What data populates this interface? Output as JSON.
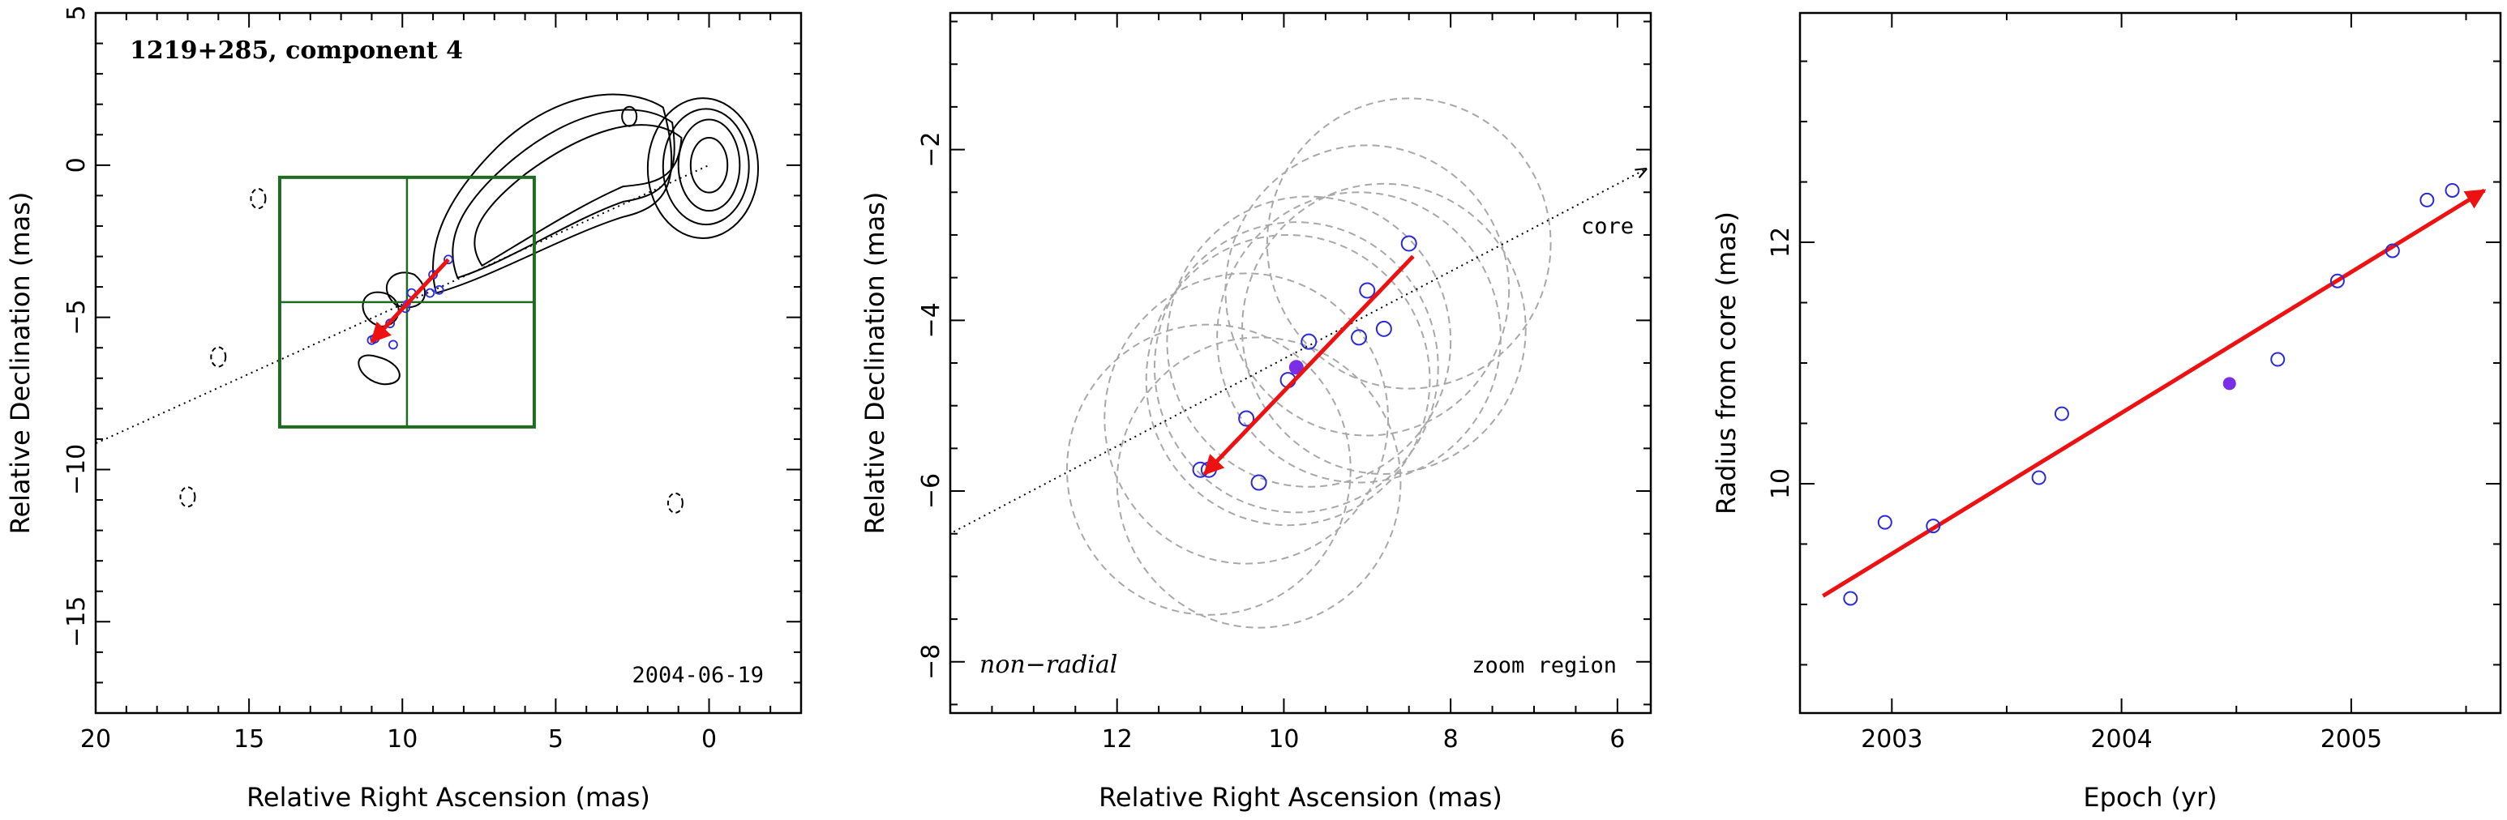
{
  "chart_data": [
    {
      "type": "contour",
      "title": "1219+285, component 4",
      "date_label": "2004-06-19",
      "xlabel": "Relative Right Ascension (mas)",
      "ylabel": "Relative Declination (mas)",
      "xlim": [
        20,
        -3
      ],
      "ylim": [
        -18,
        5
      ],
      "xticks": [
        20,
        15,
        10,
        5,
        0
      ],
      "yticks": [
        5,
        0,
        -5,
        -10,
        -15
      ],
      "zoom_box": {
        "ra": [
          14.0,
          5.7
        ],
        "dec": [
          -8.6,
          -0.4
        ],
        "center": [
          9.85,
          -4.5
        ]
      },
      "trajectory_line": {
        "from": [
          21,
          -9.6
        ],
        "to": [
          0,
          0
        ]
      },
      "motion_arrow": {
        "from": [
          8.5,
          -3.1
        ],
        "to": [
          11.0,
          -5.8
        ]
      },
      "component_points": [
        {
          "ra": 8.5,
          "dec": -3.1
        },
        {
          "ra": 8.8,
          "dec": -4.1
        },
        {
          "ra": 9.0,
          "dec": -3.6
        },
        {
          "ra": 9.1,
          "dec": -4.2
        },
        {
          "ra": 9.7,
          "dec": -4.2
        },
        {
          "ra": 9.9,
          "dec": -4.7
        },
        {
          "ra": 10.4,
          "dec": -5.2
        },
        {
          "ra": 10.3,
          "dec": -5.9
        },
        {
          "ra": 10.9,
          "dec": -5.7
        },
        {
          "ra": 11.0,
          "dec": -5.75
        }
      ],
      "highlight_point": {
        "ra": 9.85,
        "dec": -4.55
      }
    },
    {
      "type": "scatter",
      "title": "",
      "xlabel": "Relative Right Ascension (mas)",
      "ylabel": "Relative Declination (mas)",
      "left_note": "non−radial",
      "right_note": "zoom region",
      "core_label": "core",
      "xlim": [
        14,
        5.6
      ],
      "ylim": [
        -8.6,
        -0.4
      ],
      "xticks": [
        12,
        10,
        8,
        6
      ],
      "yticks": [
        -2,
        -4,
        -6,
        -8
      ],
      "trajectory_line": {
        "from": [
          14.2,
          -6.6
        ],
        "to": [
          5.6,
          -2.2
        ]
      },
      "motion_arrow": {
        "from": [
          8.45,
          -3.25
        ],
        "to": [
          10.95,
          -5.8
        ]
      },
      "points": [
        {
          "ra": 8.5,
          "dec": -3.1
        },
        {
          "ra": 9.0,
          "dec": -3.65
        },
        {
          "ra": 8.8,
          "dec": -4.1
        },
        {
          "ra": 9.1,
          "dec": -4.2
        },
        {
          "ra": 9.7,
          "dec": -4.25
        },
        {
          "ra": 9.95,
          "dec": -4.7
        },
        {
          "ra": 10.45,
          "dec": -5.15
        },
        {
          "ra": 10.9,
          "dec": -5.75
        },
        {
          "ra": 11.0,
          "dec": -5.75
        },
        {
          "ra": 10.3,
          "dec": -5.9
        }
      ],
      "highlight_point": {
        "ra": 9.85,
        "dec": -4.55
      },
      "beam_circles": [
        {
          "ra": 8.5,
          "dec": -3.1,
          "r": 1.7
        },
        {
          "ra": 9.0,
          "dec": -3.65,
          "r": 1.7
        },
        {
          "ra": 8.8,
          "dec": -4.1,
          "r": 1.7
        },
        {
          "ra": 9.1,
          "dec": -4.2,
          "r": 1.7
        },
        {
          "ra": 9.7,
          "dec": -4.25,
          "r": 1.7
        },
        {
          "ra": 9.95,
          "dec": -4.7,
          "r": 1.7
        },
        {
          "ra": 10.45,
          "dec": -5.15,
          "r": 1.7
        },
        {
          "ra": 10.9,
          "dec": -5.75,
          "r": 1.7
        },
        {
          "ra": 10.3,
          "dec": -5.9,
          "r": 1.7
        },
        {
          "ra": 9.85,
          "dec": -4.55,
          "r": 1.7
        }
      ]
    },
    {
      "type": "scatter",
      "title": "",
      "xlabel": "Epoch (yr)",
      "ylabel": "Radius from core (mas)",
      "xlim": [
        2002.6,
        2005.65
      ],
      "ylim": [
        8.1,
        13.9
      ],
      "xticks": [
        2003,
        2004,
        2005
      ],
      "yticks": [
        10,
        12
      ],
      "fit_arrow": {
        "from": [
          2002.7,
          9.07
        ],
        "to": [
          2005.58,
          12.43
        ]
      },
      "points": [
        {
          "x": 2002.82,
          "y": 9.05
        },
        {
          "x": 2002.97,
          "y": 9.68
        },
        {
          "x": 2003.18,
          "y": 9.65
        },
        {
          "x": 2003.64,
          "y": 10.05
        },
        {
          "x": 2003.74,
          "y": 10.58
        },
        {
          "x": 2004.68,
          "y": 11.03
        },
        {
          "x": 2004.94,
          "y": 11.68
        },
        {
          "x": 2005.18,
          "y": 11.93
        },
        {
          "x": 2005.33,
          "y": 12.35
        },
        {
          "x": 2005.44,
          "y": 12.43
        }
      ],
      "highlight_point": {
        "x": 2004.47,
        "y": 10.83
      }
    }
  ],
  "colors": {
    "points": "#2b2bd6",
    "highlight": "#7a2ee6",
    "arrow": "#ee1111",
    "box": "#1f6b1f",
    "circles": "#a8a8a8"
  }
}
